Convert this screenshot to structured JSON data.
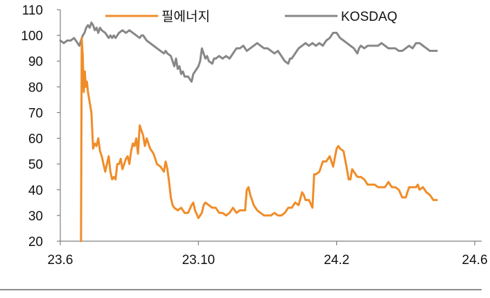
{
  "chart_data": {
    "type": "line",
    "title": "",
    "xlabel": "",
    "ylabel": "",
    "ylim": [
      20,
      110
    ],
    "yticks": [
      20,
      30,
      40,
      50,
      60,
      70,
      80,
      90,
      100,
      110
    ],
    "xticks": [
      {
        "value": 0,
        "label": "23.6"
      },
      {
        "value": 4,
        "label": "23.10"
      },
      {
        "value": 8,
        "label": "24.2"
      },
      {
        "value": 12,
        "label": "24.6"
      }
    ],
    "xlim": [
      0,
      12.2
    ],
    "grid": false,
    "legend": "top",
    "series": [
      {
        "name": "필에너지",
        "color": "#f08c28",
        "points": [
          [
            0.6,
            20
          ],
          [
            0.62,
            99
          ],
          [
            0.65,
            92
          ],
          [
            0.68,
            78
          ],
          [
            0.71,
            86
          ],
          [
            0.74,
            80
          ],
          [
            0.77,
            82
          ],
          [
            0.8,
            78
          ],
          [
            0.85,
            74
          ],
          [
            0.9,
            70
          ],
          [
            0.95,
            56
          ],
          [
            1.0,
            58
          ],
          [
            1.05,
            57
          ],
          [
            1.1,
            60
          ],
          [
            1.15,
            55
          ],
          [
            1.2,
            53
          ],
          [
            1.25,
            50
          ],
          [
            1.3,
            47
          ],
          [
            1.35,
            50
          ],
          [
            1.4,
            53
          ],
          [
            1.45,
            47
          ],
          [
            1.5,
            44
          ],
          [
            1.55,
            45
          ],
          [
            1.6,
            44
          ],
          [
            1.65,
            50
          ],
          [
            1.7,
            50
          ],
          [
            1.75,
            52
          ],
          [
            1.8,
            48
          ],
          [
            1.85,
            50
          ],
          [
            1.9,
            52
          ],
          [
            1.95,
            53
          ],
          [
            2.0,
            50
          ],
          [
            2.05,
            55
          ],
          [
            2.1,
            58
          ],
          [
            2.15,
            57
          ],
          [
            2.2,
            60
          ],
          [
            2.25,
            54
          ],
          [
            2.3,
            65
          ],
          [
            2.35,
            63
          ],
          [
            2.4,
            61
          ],
          [
            2.45,
            57
          ],
          [
            2.5,
            60
          ],
          [
            2.55,
            58
          ],
          [
            2.6,
            56
          ],
          [
            2.7,
            54
          ],
          [
            2.8,
            50
          ],
          [
            2.9,
            49
          ],
          [
            3.0,
            47
          ],
          [
            3.05,
            51
          ],
          [
            3.1,
            48
          ],
          [
            3.15,
            43
          ],
          [
            3.2,
            37
          ],
          [
            3.25,
            34
          ],
          [
            3.3,
            33
          ],
          [
            3.4,
            32
          ],
          [
            3.5,
            33
          ],
          [
            3.6,
            31
          ],
          [
            3.7,
            31
          ],
          [
            3.8,
            34
          ],
          [
            3.85,
            35
          ],
          [
            3.9,
            32
          ],
          [
            4.0,
            29
          ],
          [
            4.05,
            30
          ],
          [
            4.1,
            31
          ],
          [
            4.15,
            34
          ],
          [
            4.2,
            35
          ],
          [
            4.3,
            34
          ],
          [
            4.4,
            33
          ],
          [
            4.5,
            33
          ],
          [
            4.6,
            31
          ],
          [
            4.7,
            31
          ],
          [
            4.8,
            30
          ],
          [
            4.9,
            31
          ],
          [
            5.0,
            33
          ],
          [
            5.1,
            31
          ],
          [
            5.2,
            32
          ],
          [
            5.3,
            32
          ],
          [
            5.35,
            32
          ],
          [
            5.4,
            40
          ],
          [
            5.45,
            41
          ],
          [
            5.5,
            38
          ],
          [
            5.6,
            34
          ],
          [
            5.7,
            32
          ],
          [
            5.8,
            31
          ],
          [
            5.9,
            30
          ],
          [
            6.0,
            30
          ],
          [
            6.1,
            30
          ],
          [
            6.2,
            31
          ],
          [
            6.3,
            30
          ],
          [
            6.4,
            30
          ],
          [
            6.5,
            31
          ],
          [
            6.6,
            33
          ],
          [
            6.7,
            33
          ],
          [
            6.8,
            35
          ],
          [
            6.9,
            34
          ],
          [
            7.0,
            39
          ],
          [
            7.05,
            38
          ],
          [
            7.1,
            36
          ],
          [
            7.2,
            36
          ],
          [
            7.3,
            33
          ],
          [
            7.35,
            46
          ],
          [
            7.4,
            46
          ],
          [
            7.5,
            47
          ],
          [
            7.6,
            51
          ],
          [
            7.7,
            51
          ],
          [
            7.8,
            53
          ],
          [
            7.9,
            49
          ],
          [
            8.0,
            56
          ],
          [
            8.05,
            57
          ],
          [
            8.1,
            56
          ],
          [
            8.2,
            55
          ],
          [
            8.3,
            48
          ],
          [
            8.35,
            44
          ],
          [
            8.4,
            44
          ],
          [
            8.45,
            48
          ],
          [
            8.5,
            47
          ],
          [
            8.6,
            45
          ],
          [
            8.7,
            45
          ],
          [
            8.8,
            44
          ],
          [
            8.9,
            42
          ],
          [
            9.0,
            42
          ],
          [
            9.1,
            42
          ],
          [
            9.2,
            41
          ],
          [
            9.3,
            41
          ],
          [
            9.4,
            41
          ],
          [
            9.5,
            43
          ],
          [
            9.6,
            41
          ],
          [
            9.7,
            41
          ],
          [
            9.8,
            40
          ],
          [
            9.9,
            37
          ],
          [
            10.0,
            37
          ],
          [
            10.1,
            41
          ],
          [
            10.2,
            41
          ],
          [
            10.3,
            41
          ],
          [
            10.35,
            42
          ],
          [
            10.4,
            40
          ],
          [
            10.5,
            41
          ],
          [
            10.6,
            39
          ],
          [
            10.7,
            38
          ],
          [
            10.8,
            36
          ],
          [
            10.9,
            36
          ]
        ]
      },
      {
        "name": "KOSDAQ",
        "color": "#878787",
        "points": [
          [
            0.0,
            98
          ],
          [
            0.1,
            97
          ],
          [
            0.2,
            98
          ],
          [
            0.3,
            98
          ],
          [
            0.4,
            99
          ],
          [
            0.45,
            98
          ],
          [
            0.5,
            97
          ],
          [
            0.55,
            96
          ],
          [
            0.6,
            98
          ],
          [
            0.65,
            100
          ],
          [
            0.7,
            101
          ],
          [
            0.75,
            103
          ],
          [
            0.8,
            104
          ],
          [
            0.85,
            103
          ],
          [
            0.9,
            105
          ],
          [
            0.95,
            104
          ],
          [
            1.0,
            102
          ],
          [
            1.05,
            103
          ],
          [
            1.1,
            101
          ],
          [
            1.15,
            103
          ],
          [
            1.2,
            102
          ],
          [
            1.3,
            101
          ],
          [
            1.4,
            99
          ],
          [
            1.45,
            100
          ],
          [
            1.5,
            99
          ],
          [
            1.55,
            100
          ],
          [
            1.6,
            99
          ],
          [
            1.7,
            101
          ],
          [
            1.8,
            102
          ],
          [
            1.9,
            101
          ],
          [
            2.0,
            102
          ],
          [
            2.1,
            101
          ],
          [
            2.2,
            100
          ],
          [
            2.3,
            99
          ],
          [
            2.35,
            100
          ],
          [
            2.4,
            100
          ],
          [
            2.5,
            98
          ],
          [
            2.6,
            97
          ],
          [
            2.7,
            96
          ],
          [
            2.8,
            95
          ],
          [
            2.9,
            94
          ],
          [
            3.0,
            93
          ],
          [
            3.05,
            94
          ],
          [
            3.1,
            93
          ],
          [
            3.2,
            92
          ],
          [
            3.25,
            90
          ],
          [
            3.3,
            88
          ],
          [
            3.35,
            91
          ],
          [
            3.4,
            87
          ],
          [
            3.45,
            88
          ],
          [
            3.5,
            85
          ],
          [
            3.55,
            86
          ],
          [
            3.6,
            84
          ],
          [
            3.7,
            84
          ],
          [
            3.75,
            83
          ],
          [
            3.8,
            82
          ],
          [
            3.85,
            85
          ],
          [
            3.9,
            86
          ],
          [
            4.0,
            88
          ],
          [
            4.05,
            90
          ],
          [
            4.1,
            95
          ],
          [
            4.2,
            91
          ],
          [
            4.25,
            92
          ],
          [
            4.3,
            90
          ],
          [
            4.4,
            89
          ],
          [
            4.45,
            91
          ],
          [
            4.5,
            91
          ],
          [
            4.6,
            92
          ],
          [
            4.7,
            91
          ],
          [
            4.8,
            92
          ],
          [
            4.9,
            91
          ],
          [
            5.0,
            93
          ],
          [
            5.1,
            95
          ],
          [
            5.2,
            95
          ],
          [
            5.3,
            96
          ],
          [
            5.4,
            94
          ],
          [
            5.5,
            95
          ],
          [
            5.6,
            96
          ],
          [
            5.7,
            97
          ],
          [
            5.8,
            96
          ],
          [
            5.9,
            95
          ],
          [
            6.0,
            95
          ],
          [
            6.1,
            94
          ],
          [
            6.2,
            93
          ],
          [
            6.3,
            94
          ],
          [
            6.35,
            93
          ],
          [
            6.4,
            92
          ],
          [
            6.45,
            91
          ],
          [
            6.5,
            90
          ],
          [
            6.6,
            89
          ],
          [
            6.65,
            91
          ],
          [
            6.7,
            91
          ],
          [
            6.8,
            93
          ],
          [
            6.9,
            95
          ],
          [
            7.0,
            96
          ],
          [
            7.1,
            97
          ],
          [
            7.2,
            96
          ],
          [
            7.3,
            97
          ],
          [
            7.4,
            96
          ],
          [
            7.5,
            97
          ],
          [
            7.6,
            96
          ],
          [
            7.7,
            98
          ],
          [
            7.8,
            99
          ],
          [
            7.9,
            101
          ],
          [
            8.0,
            101
          ],
          [
            8.1,
            99
          ],
          [
            8.2,
            98
          ],
          [
            8.3,
            97
          ],
          [
            8.4,
            96
          ],
          [
            8.5,
            95
          ],
          [
            8.55,
            94
          ],
          [
            8.6,
            93
          ],
          [
            8.65,
            95
          ],
          [
            8.7,
            96
          ],
          [
            8.8,
            95
          ],
          [
            8.9,
            96
          ],
          [
            9.0,
            96
          ],
          [
            9.1,
            96
          ],
          [
            9.2,
            96
          ],
          [
            9.3,
            97
          ],
          [
            9.4,
            96
          ],
          [
            9.5,
            95
          ],
          [
            9.6,
            95
          ],
          [
            9.7,
            95
          ],
          [
            9.8,
            94
          ],
          [
            9.9,
            94
          ],
          [
            10.0,
            95
          ],
          [
            10.1,
            96
          ],
          [
            10.2,
            95
          ],
          [
            10.3,
            97
          ],
          [
            10.4,
            97
          ],
          [
            10.5,
            96
          ],
          [
            10.6,
            95
          ],
          [
            10.7,
            94
          ],
          [
            10.8,
            94
          ],
          [
            10.9,
            94
          ]
        ]
      }
    ]
  }
}
